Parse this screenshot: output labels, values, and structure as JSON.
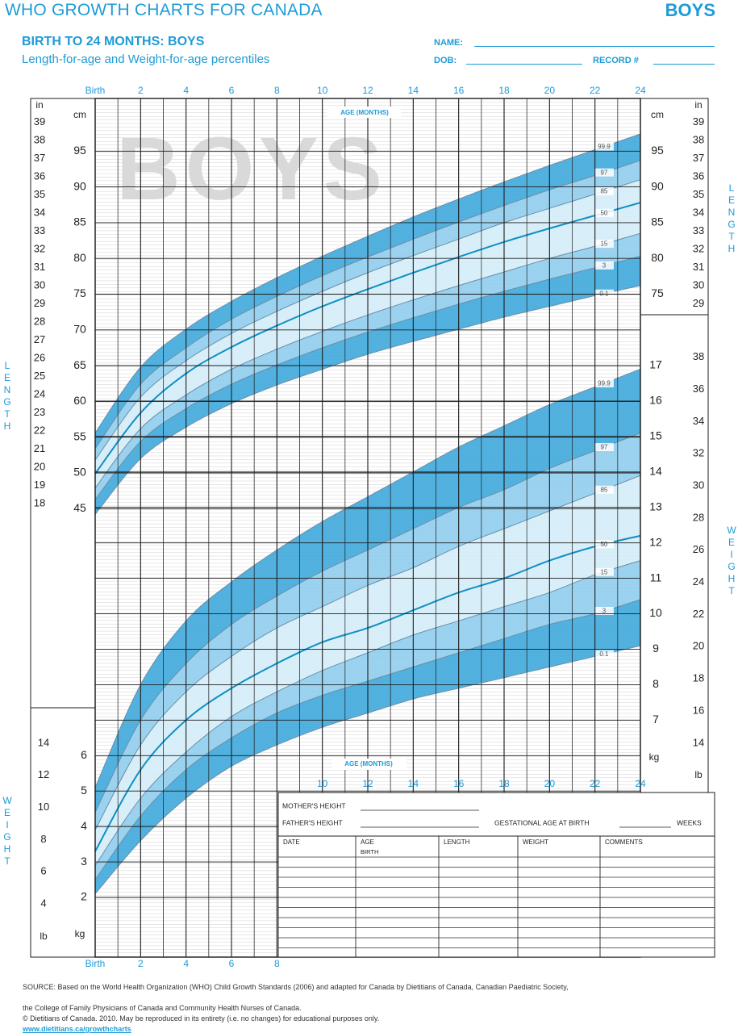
{
  "header": {
    "title": "WHO GROWTH CHARTS FOR CANADA",
    "badge": "BOYS",
    "subtitle": "BIRTH TO 24 MONTHS: BOYS",
    "subtitle2": "Length-for-age and Weight-for-age percentiles",
    "name_label": "NAME:",
    "dob_label": "DOB:",
    "record_label": "RECORD #"
  },
  "watermark": "BOYS",
  "side_labels": {
    "length": "LENGTH",
    "weight": "WEIGHT"
  },
  "age_axis_labels": {
    "top": "AGE (MONTHS)",
    "bottom": "AGE (MONTHS)"
  },
  "unit_labels": {
    "in": "in",
    "cm": "cm",
    "kg": "kg",
    "lb": "lb"
  },
  "form": {
    "mothers_height": "MOTHER'S HEIGHT",
    "fathers_height": "FATHER'S HEIGHT",
    "gestational_age": "GESTATIONAL AGE AT BIRTH",
    "weeks": "WEEKS",
    "columns": [
      "DATE",
      "AGE",
      "LENGTH",
      "WEIGHT",
      "COMMENTS"
    ],
    "birth_row": "BIRTH"
  },
  "footer": {
    "source": "SOURCE: Based on the World Health Organization (WHO) Child Growth Standards (2006) and adapted for Canada by Dietitians of Canada, Canadian Paediatric Society,",
    "source2": "the College of Family Physicians of Canada and Community Health Nurses of Canada.",
    "copyright": "© Dietitians of Canada. 2010. May be reproduced in its entirety (i.e. no changes) for educational purposes only.",
    "url": "www.dietitians.ca/growthcharts"
  },
  "colors": {
    "accent": "#1e9bd7",
    "band_dark": "#3fa9dc",
    "band_mid": "#8fcdee",
    "band_light": "#d4edfa",
    "median": "#108fc2",
    "grid": "#1d1d1d"
  },
  "chart_data": [
    {
      "type": "line",
      "name": "Length-for-age",
      "xlabel": "AGE (MONTHS)",
      "ylabel": "LENGTH",
      "x_ticks": [
        "Birth",
        "2",
        "4",
        "6",
        "8",
        "10",
        "12",
        "14",
        "16",
        "18",
        "20",
        "22",
        "24"
      ],
      "x": [
        0,
        2,
        4,
        6,
        8,
        10,
        12,
        14,
        16,
        18,
        20,
        22,
        24
      ],
      "xlim": [
        0,
        24
      ],
      "ylim_cm": [
        43,
        98
      ],
      "y_ticks_cm": [
        45,
        50,
        55,
        60,
        65,
        70,
        75,
        80,
        85,
        90,
        95
      ],
      "y_ticks_in": [
        18,
        19,
        20,
        21,
        22,
        23,
        24,
        25,
        26,
        27,
        28,
        29,
        30,
        31,
        32,
        33,
        34,
        35,
        36,
        37,
        38,
        39
      ],
      "series": [
        {
          "name": "0.1",
          "values": [
            44.2,
            52.0,
            56.4,
            59.7,
            62.3,
            64.5,
            66.6,
            68.4,
            70.1,
            71.8,
            73.3,
            74.8,
            76.2
          ]
        },
        {
          "name": "3",
          "values": [
            46.3,
            54.4,
            59.0,
            62.4,
            65.1,
            67.5,
            69.7,
            71.7,
            73.6,
            75.4,
            77.1,
            78.7,
            80.3
          ]
        },
        {
          "name": "15",
          "values": [
            47.9,
            56.2,
            60.9,
            64.5,
            67.3,
            69.8,
            72.1,
            74.2,
            76.2,
            78.1,
            80.0,
            81.7,
            83.5
          ]
        },
        {
          "name": "50",
          "values": [
            49.9,
            58.4,
            63.9,
            67.6,
            70.6,
            73.3,
            75.7,
            78.0,
            80.2,
            82.3,
            84.2,
            86.0,
            87.8
          ]
        },
        {
          "name": "85",
          "values": [
            51.8,
            60.6,
            65.7,
            69.5,
            72.6,
            75.4,
            78.0,
            80.4,
            82.7,
            85.0,
            87.0,
            89.0,
            91.0
          ]
        },
        {
          "name": "97",
          "values": [
            53.4,
            62.4,
            67.5,
            71.5,
            74.7,
            77.6,
            80.2,
            82.7,
            85.1,
            87.4,
            89.6,
            91.6,
            93.7
          ]
        },
        {
          "name": "99.9",
          "values": [
            55.6,
            64.8,
            70.1,
            74.0,
            77.3,
            80.3,
            83.1,
            85.8,
            88.3,
            90.7,
            93.0,
            95.2,
            97.4
          ]
        }
      ]
    },
    {
      "type": "line",
      "name": "Weight-for-age",
      "xlabel": "AGE (MONTHS)",
      "ylabel": "WEIGHT",
      "x_ticks": [
        "Birth",
        "2",
        "4",
        "6",
        "8",
        "10",
        "12",
        "14",
        "16",
        "18",
        "20",
        "22",
        "24"
      ],
      "x": [
        0,
        2,
        4,
        6,
        8,
        10,
        12,
        14,
        16,
        18,
        20,
        22,
        24
      ],
      "xlim": [
        0,
        24
      ],
      "ylim_kg": [
        1.3,
        18.1
      ],
      "y_ticks_kg": [
        2,
        3,
        4,
        5,
        6,
        7,
        8,
        9,
        10,
        11,
        12,
        13,
        14,
        15,
        16,
        17
      ],
      "y_ticks_lb": [
        4,
        6,
        8,
        10,
        12,
        14,
        16,
        18,
        20,
        22,
        24,
        26,
        28,
        30,
        32,
        34,
        36,
        38
      ],
      "series": [
        {
          "name": "0.1",
          "values": [
            2.1,
            3.6,
            4.8,
            5.7,
            6.3,
            6.8,
            7.2,
            7.6,
            7.9,
            8.2,
            8.5,
            8.8,
            9.1
          ]
        },
        {
          "name": "3",
          "values": [
            2.5,
            4.3,
            5.6,
            6.5,
            7.2,
            7.7,
            8.1,
            8.5,
            8.9,
            9.3,
            9.7,
            10.0,
            10.4
          ]
        },
        {
          "name": "15",
          "values": [
            2.9,
            4.8,
            6.1,
            7.1,
            7.8,
            8.4,
            8.9,
            9.4,
            9.8,
            10.2,
            10.6,
            11.1,
            11.5
          ]
        },
        {
          "name": "50",
          "values": [
            3.3,
            5.6,
            7.0,
            7.9,
            8.6,
            9.2,
            9.6,
            10.1,
            10.6,
            11.0,
            11.5,
            11.9,
            12.2
          ]
        },
        {
          "name": "85",
          "values": [
            3.9,
            6.3,
            7.8,
            8.8,
            9.6,
            10.2,
            10.8,
            11.3,
            11.9,
            12.4,
            12.9,
            13.4,
            13.9
          ]
        },
        {
          "name": "97",
          "values": [
            4.4,
            7.0,
            8.6,
            9.7,
            10.5,
            11.2,
            11.8,
            12.4,
            13.0,
            13.5,
            14.1,
            14.6,
            15.1
          ]
        },
        {
          "name": "99.9",
          "values": [
            5.1,
            8.0,
            9.8,
            10.9,
            11.8,
            12.6,
            13.3,
            14.0,
            14.7,
            15.3,
            15.9,
            16.4,
            16.9
          ]
        }
      ]
    }
  ]
}
